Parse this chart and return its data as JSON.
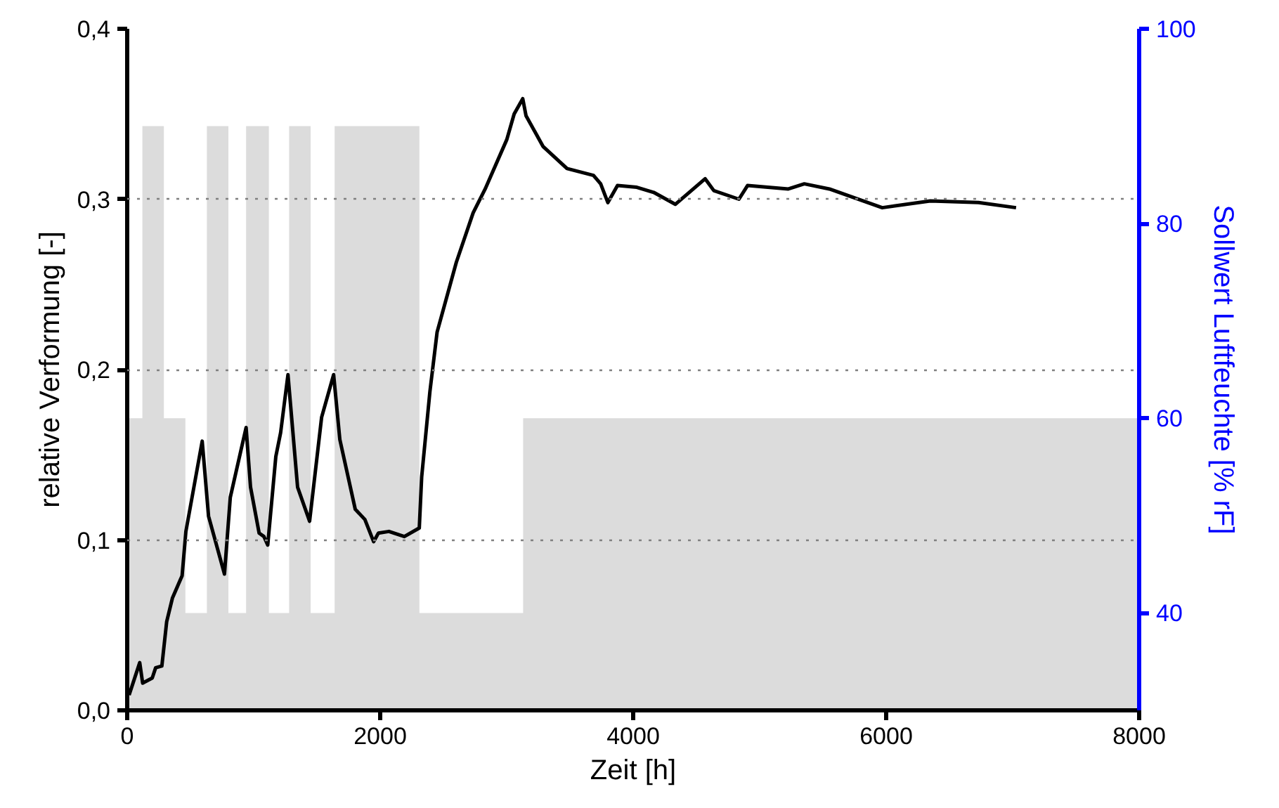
{
  "chart_data": {
    "type": "line",
    "xlabel": "Zeit [h]",
    "ylabel": "relative Verformung [-]",
    "y2label": "Sollwert Luftfeuchte [% rF]",
    "xlim": [
      0,
      8000
    ],
    "xticks": [
      0,
      2000,
      4000,
      6000,
      8000
    ],
    "ylim": [
      0,
      0.4
    ],
    "yticks": [
      {
        "value": 0,
        "label": "0,0"
      },
      {
        "value": 0.1,
        "label": "0,1"
      },
      {
        "value": 0.2,
        "label": "0,2"
      },
      {
        "value": 0.3,
        "label": "0,3"
      },
      {
        "value": 0.4,
        "label": "0,4"
      }
    ],
    "y2lim": [
      30,
      100
    ],
    "y2ticks": [
      40,
      60,
      80,
      100
    ],
    "grid": "y",
    "line_style": "solid",
    "marker": "none",
    "series": [
      {
        "type": "area",
        "axis": "y2",
        "color": "#dcdcdc",
        "x": [
          0,
          120,
          120,
          290,
          290,
          460,
          460,
          630,
          630,
          800,
          800,
          940,
          940,
          1120,
          1120,
          1280,
          1280,
          1450,
          1450,
          1640,
          1640,
          2310,
          2310,
          3130,
          3130,
          8000
        ],
        "values": [
          60,
          60,
          90,
          90,
          60,
          60,
          40,
          40,
          90,
          90,
          40,
          40,
          90,
          90,
          40,
          40,
          90,
          90,
          40,
          40,
          90,
          90,
          40,
          40,
          60,
          60
        ]
      },
      {
        "color": "#000000",
        "x": [
          15,
          99,
          122,
          198,
          225,
          274,
          312,
          358,
          434,
          464,
          593,
          643,
          769,
          815,
          940,
          975,
          1043,
          1081,
          1111,
          1175,
          1213,
          1271,
          1347,
          1442,
          1537,
          1632,
          1681,
          1803,
          1879,
          1948,
          1986,
          2069,
          2191,
          2309,
          2328,
          2393,
          2450,
          2602,
          2735,
          2830,
          3001,
          3059,
          3127,
          3153,
          3287,
          3477,
          3686,
          3743,
          3800,
          3876,
          4029,
          4162,
          4333,
          4569,
          4638,
          4836,
          4904,
          5227,
          5353,
          5551,
          5969,
          6349,
          6730,
          7027
        ],
        "values": [
          0.009,
          0.028,
          0.016,
          0.019,
          0.025,
          0.026,
          0.052,
          0.066,
          0.079,
          0.105,
          0.158,
          0.114,
          0.08,
          0.125,
          0.166,
          0.131,
          0.104,
          0.102,
          0.097,
          0.149,
          0.163,
          0.197,
          0.131,
          0.111,
          0.172,
          0.197,
          0.159,
          0.118,
          0.112,
          0.099,
          0.104,
          0.105,
          0.102,
          0.107,
          0.137,
          0.187,
          0.222,
          0.263,
          0.292,
          0.306,
          0.335,
          0.35,
          0.359,
          0.349,
          0.331,
          0.318,
          0.314,
          0.309,
          0.298,
          0.308,
          0.307,
          0.304,
          0.297,
          0.312,
          0.305,
          0.3,
          0.308,
          0.306,
          0.309,
          0.306,
          0.295,
          0.299,
          0.298,
          0.295
        ]
      }
    ]
  }
}
